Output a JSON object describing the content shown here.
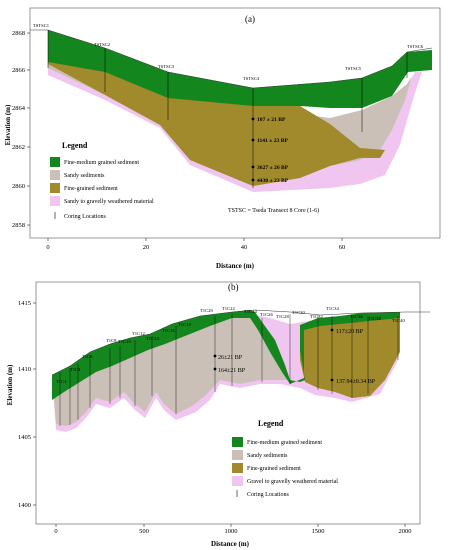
{
  "panel_a": {
    "label": "(a)",
    "ylabel": "Elevation (m)",
    "xlabel": "Distance (m)",
    "y_ticks": [
      "2868",
      "2866",
      "2864",
      "2862",
      "2860",
      "2858"
    ],
    "x_ticks": [
      "0",
      "20",
      "40",
      "60"
    ],
    "cores": [
      "TSTSC1",
      "TSTSC2",
      "TSTSC3",
      "TSTSC4",
      "TSTSC5",
      "TSTSC6"
    ],
    "dates": [
      "107 ± 21 BP",
      "1141 ± 23 BP",
      "3627 ± 26 BP",
      "4430 ± 23 BP"
    ],
    "note": "TSTSC = Tseda Transect 8 Core (1-6)",
    "legend": {
      "title": "Legend",
      "items": [
        "Fine-medium grained sediment",
        "Sandy sediments",
        "Fine-grained sediment",
        "Sandy to gravelly weathered material"
      ],
      "coring": "Coring Locations"
    }
  },
  "panel_b": {
    "label": "(b)",
    "ylabel": "Elevation (m)",
    "xlabel": "Distance (m)",
    "y_ticks": [
      "1415",
      "1410",
      "1405",
      "1400"
    ],
    "x_ticks": [
      "0",
      "500",
      "1000",
      "1500",
      "2000"
    ],
    "cores": [
      "T1C1",
      "T1C4",
      "T1C6",
      "T1C8",
      "T1C10",
      "T1C12",
      "T1C14",
      "T1C16",
      "T1C18",
      "T1C20",
      "T1C22",
      "T1C24",
      "T1C26",
      "T1C28",
      "T1C30",
      "T1C32",
      "T1C34",
      "T1C36",
      "T1C38",
      "T1C40"
    ],
    "dates": [
      "26±21 BP",
      "164±21 BP",
      "117±20 BP",
      "137.94±0.34 BP"
    ],
    "legend": {
      "title": "Legend",
      "items": [
        "Fine-medium grained sediment",
        "Sandy sediments",
        "Fine-grained sediment",
        "Gravel to gravelly weathered material"
      ],
      "coring": "Coring Locations"
    }
  },
  "colors": {
    "fine_medium": "#14861e",
    "sandy": "#cbc0b8",
    "fine": "#a08a2c",
    "weathered": "#f0c6f0"
  }
}
